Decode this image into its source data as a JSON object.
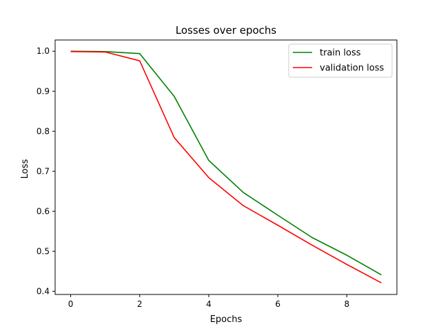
{
  "chart_data": {
    "type": "line",
    "title": "Losses over epochs",
    "xlabel": "Epochs",
    "ylabel": "Loss",
    "x": [
      0,
      1,
      2,
      3,
      4,
      5,
      6,
      7,
      8,
      9
    ],
    "xlim": [
      -0.45,
      9.45
    ],
    "ylim": [
      0.392,
      1.028
    ],
    "xticks": [
      0,
      2,
      4,
      6,
      8
    ],
    "yticks": [
      0.4,
      0.5,
      0.6,
      0.7,
      0.8,
      0.9,
      1.0
    ],
    "ytick_labels": [
      "0.4",
      "0.5",
      "0.6",
      "0.7",
      "0.8",
      "0.9",
      "1.0"
    ],
    "grid": false,
    "legend_position": "top-right",
    "series": [
      {
        "name": "train loss",
        "color": "#008000",
        "values": [
          1.0,
          0.999,
          0.994,
          0.887,
          0.727,
          0.647,
          0.59,
          0.534,
          0.49,
          0.441
        ]
      },
      {
        "name": "validation loss",
        "color": "#ff0000",
        "values": [
          0.999,
          0.998,
          0.976,
          0.784,
          0.684,
          0.614,
          0.565,
          0.515,
          0.467,
          0.421
        ]
      }
    ]
  }
}
